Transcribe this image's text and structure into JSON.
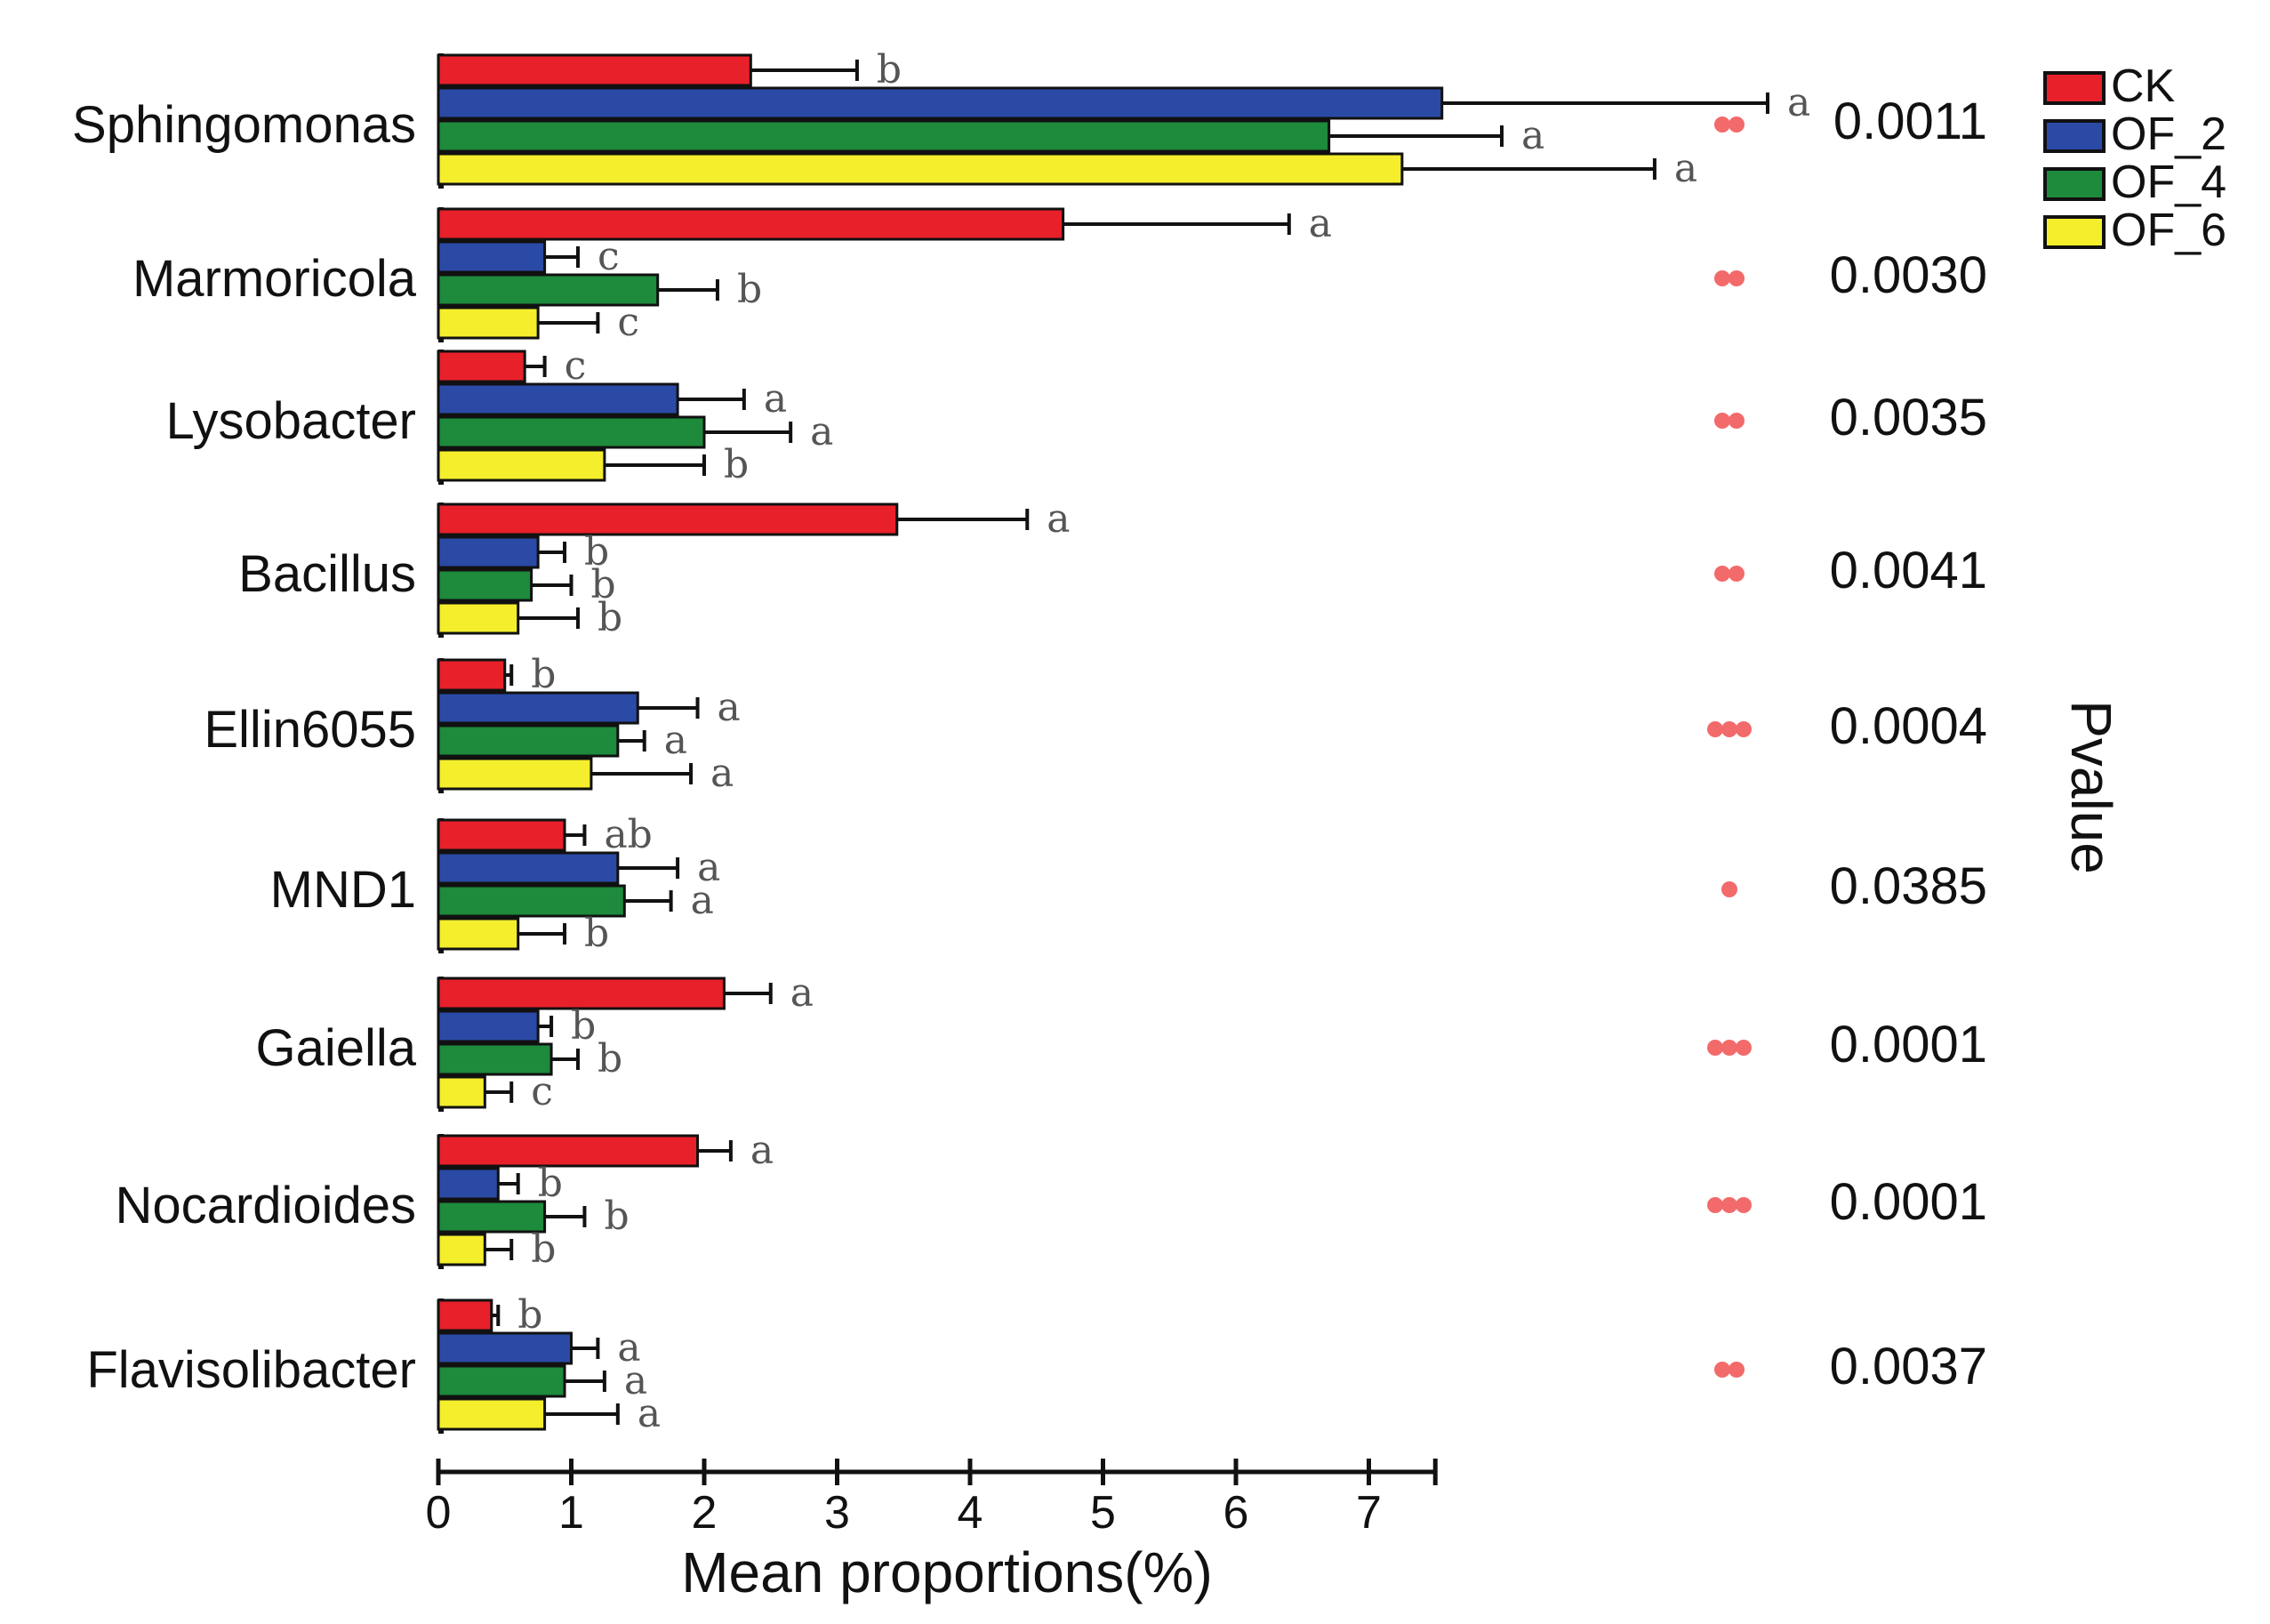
{
  "chart_data": {
    "type": "bar",
    "orientation": "horizontal",
    "xlabel": "Mean proportions(%)",
    "pvalue_label": "Pvalue",
    "xlim": [
      0,
      7.5
    ],
    "xticks": [
      0,
      1,
      2,
      3,
      4,
      5,
      6,
      7
    ],
    "series": [
      {
        "name": "CK",
        "color": "#e8202a"
      },
      {
        "name": "OF_2",
        "color": "#2a4aa6"
      },
      {
        "name": "OF_4",
        "color": "#1d8a3c"
      },
      {
        "name": "OF_6",
        "color": "#f4ee2c"
      }
    ],
    "categories": [
      {
        "name": "Sphingomonas",
        "pvalue": "0.0011",
        "stars": "**",
        "values": [
          2.35,
          7.55,
          6.7,
          7.25
        ],
        "errors": [
          0.8,
          2.45,
          1.3,
          1.9
        ],
        "letters": [
          "b",
          "a",
          "a",
          "a"
        ]
      },
      {
        "name": "Marmoricola",
        "pvalue": "0.0030",
        "stars": "**",
        "values": [
          4.7,
          0.8,
          1.65,
          0.75
        ],
        "errors": [
          1.7,
          0.25,
          0.45,
          0.45
        ],
        "letters": [
          "a",
          "c",
          "b",
          "c"
        ]
      },
      {
        "name": "Lysobacter",
        "pvalue": "0.0035",
        "stars": "**",
        "values": [
          0.65,
          1.8,
          2.0,
          1.25
        ],
        "errors": [
          0.15,
          0.5,
          0.65,
          0.75
        ],
        "letters": [
          "c",
          "a",
          "a",
          "b"
        ]
      },
      {
        "name": "Bacillus",
        "pvalue": "0.0041",
        "stars": "**",
        "values": [
          3.45,
          0.75,
          0.7,
          0.6
        ],
        "errors": [
          0.98,
          0.2,
          0.3,
          0.45
        ],
        "letters": [
          "a",
          "b",
          "b",
          "b"
        ]
      },
      {
        "name": "Ellin6055",
        "pvalue": "0.0004",
        "stars": "***",
        "values": [
          0.5,
          1.5,
          1.35,
          1.15
        ],
        "errors": [
          0.05,
          0.45,
          0.2,
          0.75
        ],
        "letters": [
          "b",
          "a",
          "a",
          "a"
        ]
      },
      {
        "name": "MND1",
        "pvalue": "0.0385",
        "stars": "*",
        "values": [
          0.95,
          1.35,
          1.4,
          0.6
        ],
        "errors": [
          0.15,
          0.45,
          0.35,
          0.35
        ],
        "letters": [
          "ab",
          "a",
          "a",
          "b"
        ]
      },
      {
        "name": "Gaiella",
        "pvalue": "0.0001",
        "stars": "***",
        "values": [
          2.15,
          0.75,
          0.85,
          0.35
        ],
        "errors": [
          0.35,
          0.1,
          0.2,
          0.2
        ],
        "letters": [
          "a",
          "b",
          "b",
          "c"
        ]
      },
      {
        "name": "Nocardioides",
        "pvalue": "0.0001",
        "stars": "***",
        "values": [
          1.95,
          0.45,
          0.8,
          0.35
        ],
        "errors": [
          0.25,
          0.15,
          0.3,
          0.2
        ],
        "letters": [
          "a",
          "b",
          "b",
          "b"
        ]
      },
      {
        "name": "Flavisolibacter",
        "pvalue": "0.0037",
        "stars": "**",
        "values": [
          0.4,
          1.0,
          0.95,
          0.8
        ],
        "errors": [
          0.05,
          0.2,
          0.3,
          0.55
        ],
        "letters": [
          "b",
          "a",
          "a",
          "a"
        ]
      }
    ]
  }
}
